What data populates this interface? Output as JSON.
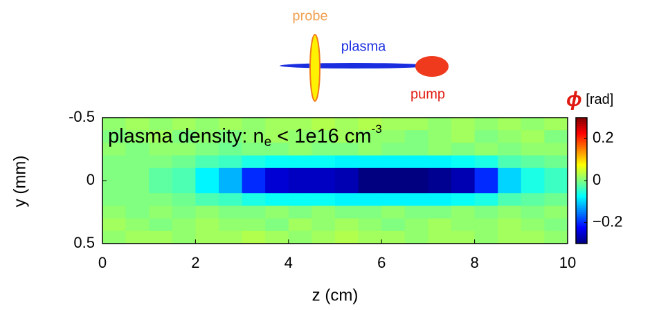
{
  "schematic": {
    "probe": "probe",
    "plasma": "plasma",
    "pump": "pump"
  },
  "chart_data": {
    "type": "heatmap",
    "annotation": {
      "text": "plasma density:  n",
      "subscript": "e",
      "rest": " < 1e16 cm",
      "superscript": "-3"
    },
    "xlabel": "z (cm)",
    "ylabel": "y (mm)",
    "colorbar_symbol": "ϕ",
    "colorbar_unit": " [rad]",
    "colormap": "jet",
    "x": [
      0.25,
      0.75,
      1.25,
      1.75,
      2.25,
      2.75,
      3.25,
      3.75,
      4.25,
      4.75,
      5.25,
      5.75,
      6.25,
      6.75,
      7.25,
      7.75,
      8.25,
      8.75,
      9.25,
      9.75
    ],
    "y": [
      -0.45,
      -0.35,
      -0.25,
      -0.15,
      -0.05,
      0.05,
      0.15,
      0.25,
      0.35,
      0.45
    ],
    "z": [
      [
        0.01,
        0.02,
        0.01,
        0.02,
        0.01,
        0.02,
        0.01,
        0.02,
        0.02,
        0.03,
        0.02,
        0.03,
        0.02,
        0.02,
        0.01,
        0.02,
        0.01,
        0.02,
        0.01,
        0.02
      ],
      [
        0.0,
        0.01,
        0.02,
        0.0,
        0.01,
        0.0,
        0.01,
        0.02,
        0.01,
        0.01,
        0.02,
        0.01,
        0.01,
        0.0,
        0.01,
        0.02,
        0.0,
        0.01,
        0.02,
        0.0
      ],
      [
        0.01,
        0.0,
        0.01,
        0.01,
        0.0,
        -0.01,
        0.0,
        0.0,
        0.01,
        0.0,
        0.0,
        0.01,
        0.0,
        0.0,
        0.01,
        0.0,
        0.01,
        0.0,
        0.01,
        0.01
      ],
      [
        0.0,
        0.0,
        0.0,
        -0.01,
        -0.03,
        -0.04,
        -0.06,
        -0.07,
        -0.07,
        -0.07,
        -0.08,
        -0.08,
        -0.08,
        -0.08,
        -0.08,
        -0.07,
        -0.06,
        -0.03,
        -0.02,
        -0.01
      ],
      [
        0.0,
        0.0,
        -0.02,
        -0.03,
        -0.08,
        -0.12,
        -0.2,
        -0.25,
        -0.26,
        -0.26,
        -0.27,
        -0.3,
        -0.3,
        -0.3,
        -0.29,
        -0.27,
        -0.2,
        -0.1,
        -0.06,
        -0.04
      ],
      [
        0.0,
        0.0,
        -0.02,
        -0.03,
        -0.08,
        -0.12,
        -0.2,
        -0.25,
        -0.26,
        -0.26,
        -0.27,
        -0.3,
        -0.3,
        -0.3,
        -0.29,
        -0.27,
        -0.2,
        -0.1,
        -0.06,
        -0.04
      ],
      [
        0.0,
        0.0,
        0.0,
        -0.01,
        -0.03,
        -0.04,
        -0.06,
        -0.07,
        -0.07,
        -0.07,
        -0.08,
        -0.08,
        -0.08,
        -0.08,
        -0.08,
        -0.07,
        -0.06,
        -0.03,
        -0.02,
        -0.01
      ],
      [
        0.01,
        0.0,
        0.01,
        0.0,
        0.01,
        0.0,
        0.0,
        0.01,
        0.0,
        0.01,
        0.0,
        0.0,
        0.01,
        0.0,
        0.0,
        0.01,
        0.0,
        0.01,
        0.0,
        0.01
      ],
      [
        0.02,
        0.01,
        0.0,
        0.01,
        0.02,
        0.01,
        0.01,
        0.0,
        0.02,
        0.01,
        0.02,
        0.01,
        0.0,
        0.01,
        0.02,
        0.01,
        0.01,
        0.02,
        0.01,
        0.0
      ],
      [
        0.01,
        0.02,
        0.02,
        0.01,
        0.02,
        0.02,
        0.03,
        0.02,
        0.01,
        0.02,
        0.03,
        0.02,
        0.02,
        0.01,
        0.02,
        0.02,
        0.01,
        0.02,
        0.02,
        0.01
      ]
    ],
    "xlim": [
      0,
      10
    ],
    "xticks": [
      0,
      2,
      4,
      6,
      8,
      10
    ],
    "ylim": [
      -0.5,
      0.5
    ],
    "yticks": [
      -0.5,
      0,
      0.5
    ],
    "y_reversed": true,
    "clim": [
      -0.3,
      0.3
    ],
    "cticks": [
      0.2,
      0,
      {
        "value": -0.2,
        "label": "−0.2"
      }
    ]
  }
}
